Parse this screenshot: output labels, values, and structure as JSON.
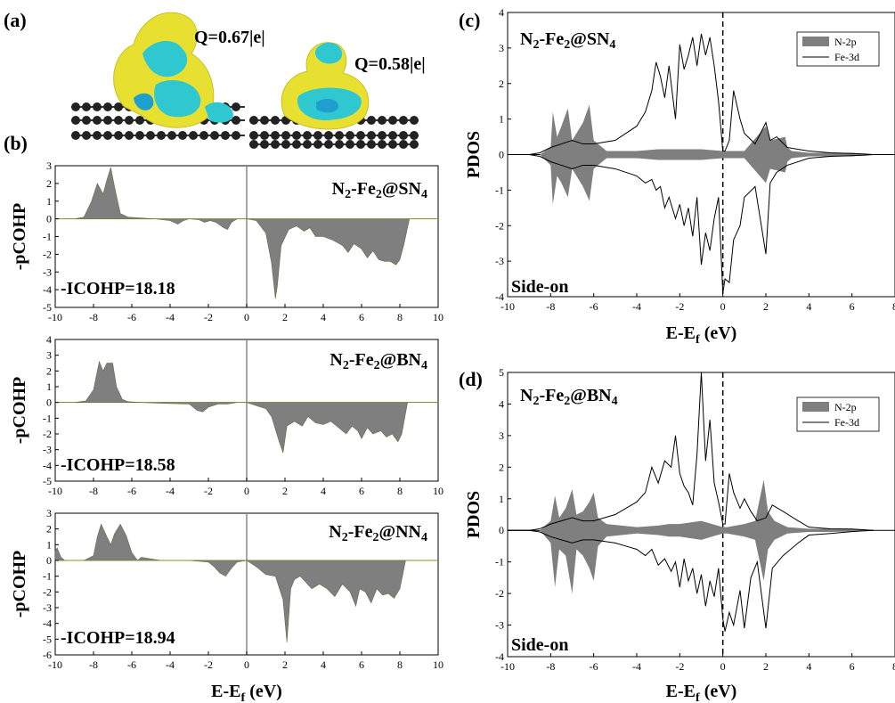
{
  "panel_labels": {
    "a": "(a)",
    "b": "(b)",
    "c": "(c)",
    "d": "(d)"
  },
  "panel_a": {
    "charge_left": "Q=0.67|e|",
    "charge_right": "Q=0.58|e|",
    "colors": {
      "isosurface_yellow": "#e8e030",
      "isosurface_cyan": "#30c8d0",
      "atoms": "#202020"
    }
  },
  "colors": {
    "fill": "#7f7f7f",
    "line": "#000000",
    "zero_line": "#b8b000"
  },
  "chart_data": [
    {
      "id": "cohp-sn4",
      "type": "area",
      "title_main": "N",
      "title_parts": [
        "N",
        "2",
        "-Fe",
        "2",
        "@SN",
        "4"
      ],
      "annotation": "-ICOHP=18.18",
      "ylabel": "-pCOHP",
      "xlabel": "",
      "xlim": [
        -10,
        10
      ],
      "ylim": [
        -5,
        3
      ],
      "yticks": [
        "3",
        "2",
        "1",
        "0",
        "-1",
        "-2",
        "-3",
        "-4",
        "-5"
      ],
      "xticks": [
        "-10",
        "-8",
        "-6",
        "-4",
        "-2",
        "0",
        "2",
        "4",
        "6",
        "8",
        "10"
      ],
      "series": [
        {
          "x": [
            -10,
            -9,
            -8.5,
            -8.1,
            -7.8,
            -7.5,
            -7.3,
            -7.1,
            -6.9,
            -6.6,
            -6.2,
            -5.5,
            -4.8,
            -4,
            -3.6,
            -3.3,
            -3,
            -2.5,
            -2.2,
            -1.9,
            -1.6,
            -1.2,
            -1,
            -0.8,
            -0.5,
            0,
            0.5,
            1,
            1.3,
            1.5,
            1.6,
            1.8,
            2.2,
            2.6,
            3,
            3.3,
            3.6,
            4,
            4.5,
            5,
            5.3,
            5.6,
            6,
            6.3,
            6.6,
            6.9,
            7.2,
            7.5,
            7.8,
            8,
            8.2,
            8.5,
            10
          ],
          "y": [
            0,
            0,
            0.1,
            1.0,
            2.0,
            1.4,
            2.2,
            2.9,
            1.8,
            0.3,
            0.1,
            0.05,
            0,
            -0.1,
            -0.3,
            -0.1,
            0,
            -0.05,
            -0.2,
            -0.1,
            -0.2,
            -0.5,
            -0.6,
            -0.2,
            0,
            0,
            -0.1,
            -0.8,
            -2.5,
            -4.5,
            -3.8,
            -1.5,
            -0.6,
            -0.4,
            -0.7,
            -0.5,
            -1.0,
            -1.0,
            -1.2,
            -1.5,
            -1.9,
            -1.4,
            -1.7,
            -2.2,
            -1.8,
            -2.3,
            -2.4,
            -2.4,
            -2.6,
            -2.3,
            -1.5,
            0,
            0
          ]
        }
      ]
    },
    {
      "id": "cohp-bn4",
      "type": "area",
      "title_parts": [
        "N",
        "2",
        "-Fe",
        "2",
        "@BN",
        "4"
      ],
      "annotation": "-ICOHP=18.58",
      "ylabel": "-pCOHP",
      "xlabel": "",
      "xlim": [
        -10,
        10
      ],
      "ylim": [
        -5,
        4
      ],
      "yticks": [
        "4",
        "3",
        "2",
        "1",
        "0",
        "-1",
        "-2",
        "-3",
        "-4",
        "-5"
      ],
      "xticks": [
        "-10",
        "-8",
        "-6",
        "-4",
        "-2",
        "0",
        "2",
        "4",
        "6",
        "8",
        "10"
      ],
      "series": [
        {
          "x": [
            -10,
            -9,
            -8.4,
            -8.0,
            -7.7,
            -7.5,
            -7.3,
            -7.0,
            -6.8,
            -6.5,
            -6.2,
            -5.5,
            -4.5,
            -3,
            -2.6,
            -2.3,
            -2,
            -1.5,
            -1,
            -0.5,
            0,
            0.5,
            1.0,
            1.3,
            1.7,
            1.9,
            2.1,
            2.5,
            2.9,
            3.2,
            3.6,
            4.0,
            4.4,
            4.8,
            5.2,
            5.5,
            5.8,
            6.0,
            6.3,
            6.6,
            7.0,
            7.3,
            7.6,
            7.9,
            8.1,
            8.4,
            10
          ],
          "y": [
            0,
            0,
            0.1,
            0.8,
            2.6,
            2.0,
            2.5,
            2.5,
            1.0,
            0.2,
            0.05,
            0,
            -0.05,
            -0.1,
            -0.5,
            -0.6,
            -0.3,
            -0.1,
            -0.1,
            0,
            0,
            -0.2,
            -0.4,
            -0.9,
            -2.5,
            -3.2,
            -1.5,
            -1.2,
            -1.5,
            -0.9,
            -1.3,
            -1.4,
            -1.2,
            -1.6,
            -2.0,
            -1.5,
            -1.8,
            -2.3,
            -1.6,
            -2.0,
            -1.8,
            -2.2,
            -2.0,
            -2.5,
            -2.0,
            0,
            0
          ]
        }
      ]
    },
    {
      "id": "cohp-nn4",
      "type": "area",
      "title_parts": [
        "N",
        "2",
        "-Fe",
        "2",
        "@NN",
        "4"
      ],
      "annotation": "-ICOHP=18.94",
      "ylabel": "-pCOHP",
      "xlabel": "E-E_f (eV)",
      "xlim": [
        -10,
        10
      ],
      "ylim": [
        -6,
        3
      ],
      "yticks": [
        "3",
        "2",
        "1",
        "0",
        "-1",
        "-2",
        "-3",
        "-4",
        "-5",
        "-6"
      ],
      "xticks": [
        "-10",
        "-8",
        "-6",
        "-4",
        "-2",
        "0",
        "2",
        "4",
        "6",
        "8",
        "10"
      ],
      "series": [
        {
          "x": [
            -10,
            -9.9,
            -9.7,
            -9.5,
            -8.5,
            -8,
            -7.8,
            -7.6,
            -7.3,
            -7.1,
            -6.9,
            -6.6,
            -6.3,
            -6.0,
            -5.7,
            -5.5,
            -4.5,
            -3,
            -2,
            -1.7,
            -1.4,
            -1.1,
            -0.8,
            -0.5,
            0,
            0.5,
            1.0,
            1.5,
            1.9,
            2.1,
            2.3,
            2.5,
            2.8,
            3.1,
            3.4,
            3.8,
            4.2,
            4.6,
            5.0,
            5.4,
            5.7,
            5.9,
            6.2,
            6.5,
            6.8,
            7.1,
            7.4,
            7.7,
            8.0,
            8.3,
            10
          ],
          "y": [
            0.6,
            0.8,
            0.2,
            0,
            0,
            0.3,
            1.5,
            2.3,
            1.5,
            1.0,
            1.7,
            2.3,
            1.6,
            0.5,
            0,
            0.2,
            0,
            0,
            -0.1,
            -0.4,
            -0.8,
            -1.0,
            -0.5,
            -0.1,
            0,
            -0.4,
            -0.9,
            -1.0,
            -2.5,
            -5.2,
            -1.8,
            -1.2,
            -1.0,
            -1.4,
            -1.8,
            -1.5,
            -1.8,
            -2.3,
            -1.5,
            -2.0,
            -2.9,
            -1.8,
            -2.0,
            -2.7,
            -1.8,
            -2.2,
            -2.1,
            -2.4,
            -1.8,
            0,
            0
          ]
        }
      ]
    },
    {
      "id": "pdos-sn4",
      "type": "area",
      "title_parts": [
        "N",
        "2",
        "-Fe",
        "2",
        "@SN",
        "4"
      ],
      "annotation": "Side-on",
      "ylabel": "PDOS",
      "xlabel": "E-E_f (eV)",
      "xlim": [
        -10,
        8
      ],
      "ylim": [
        -4,
        4
      ],
      "yticks": [
        "4",
        "3",
        "2",
        "1",
        "0",
        "-1",
        "-2",
        "-3",
        "-4"
      ],
      "xticks": [
        "-10",
        "-8",
        "-6",
        "-4",
        "-2",
        "0",
        "2",
        "4",
        "6",
        "8"
      ],
      "legend": [
        "N-2p",
        "Fe-3d"
      ],
      "legend_loc": "top-right",
      "fermi_line_x": 0,
      "series": [
        {
          "name": "N-2p",
          "kind": "fill",
          "x": [
            -10,
            -8.5,
            -8.0,
            -7.9,
            -7.7,
            -7.5,
            -7.2,
            -7.0,
            -6.8,
            -6.5,
            -6.2,
            -6.0,
            -5.8,
            -5.4,
            -4,
            -3,
            -2,
            -1,
            0,
            0.2,
            1,
            2.0,
            2.2,
            2.9,
            3.0,
            3.2,
            4,
            5,
            6,
            6.5,
            7
          ],
          "y_up": [
            0,
            0,
            0.2,
            1.2,
            0.5,
            0.8,
            1.3,
            0.4,
            0.6,
            0.9,
            1.4,
            0.4,
            0.3,
            0.1,
            0.1,
            0.15,
            0.15,
            0.15,
            0.1,
            0.1,
            0.1,
            0.8,
            0.4,
            0.5,
            0.2,
            0.1,
            0.05,
            0.05,
            0.05,
            0.02,
            0
          ],
          "y_down": [
            0,
            0,
            -0.3,
            -1.4,
            -0.6,
            -0.8,
            -1.2,
            -0.4,
            -0.6,
            -0.9,
            -1.3,
            -0.4,
            -0.3,
            -0.1,
            -0.1,
            -0.15,
            -0.15,
            -0.15,
            -0.1,
            -0.1,
            -0.1,
            -0.8,
            -0.4,
            -0.5,
            -0.2,
            -0.1,
            -0.05,
            -0.05,
            -0.05,
            -0.02,
            0
          ]
        },
        {
          "name": "Fe-3d",
          "kind": "line",
          "x": [
            -10,
            -9,
            -8.5,
            -8,
            -7.5,
            -7,
            -6.5,
            -6,
            -5,
            -4.5,
            -4,
            -3.6,
            -3.3,
            -3.1,
            -2.9,
            -2.7,
            -2.5,
            -2.2,
            -2.0,
            -1.8,
            -1.6,
            -1.4,
            -1.2,
            -1.0,
            -0.8,
            -0.6,
            -0.4,
            -0.2,
            0,
            0.1,
            0.3,
            0.5,
            0.8,
            1.0,
            1.5,
            2.0,
            2.2,
            2.5,
            3.0,
            4.0,
            5,
            6,
            6.5,
            7
          ],
          "y_up": [
            0,
            0,
            0.05,
            0.2,
            0.3,
            0.4,
            0.3,
            0.3,
            0.4,
            0.6,
            0.8,
            1.2,
            1.8,
            2.6,
            2.2,
            1.6,
            2.5,
            1.0,
            3.1,
            2.4,
            2.8,
            3.3,
            2.5,
            3.4,
            2.8,
            3.3,
            2.5,
            1.5,
            0.1,
            0.1,
            0.4,
            1.8,
            1.0,
            0.6,
            0.3,
            0.9,
            0.4,
            0.5,
            0.2,
            0.1,
            0.05,
            0.03,
            0.02,
            0
          ],
          "y_down": [
            0,
            0,
            -0.05,
            -0.2,
            -0.3,
            -0.4,
            -0.3,
            -0.3,
            -0.4,
            -0.5,
            -0.6,
            -0.8,
            -0.7,
            -1.0,
            -0.9,
            -1.5,
            -1.2,
            -1.8,
            -1.4,
            -2.0,
            -1.5,
            -2.3,
            -1.2,
            -3.1,
            -2.2,
            -2.7,
            -1.8,
            -1.2,
            -3.9,
            -3.5,
            -3.6,
            -2.4,
            -2.0,
            -1.2,
            -0.9,
            -2.8,
            -0.8,
            -0.5,
            -0.3,
            -0.1,
            -0.05,
            -0.03,
            -0.02,
            0
          ]
        }
      ]
    },
    {
      "id": "pdos-bn4",
      "type": "area",
      "title_parts": [
        "N",
        "2",
        "-Fe",
        "2",
        "@BN",
        "4"
      ],
      "annotation": "Side-on",
      "ylabel": "PDOS",
      "xlabel": "E-E_f (eV)",
      "xlim": [
        -10,
        8
      ],
      "ylim": [
        -4,
        5
      ],
      "yticks": [
        "5",
        "4",
        "3",
        "2",
        "1",
        "0",
        "-1",
        "-2",
        "-3",
        "-4"
      ],
      "xticks": [
        "-10",
        "-8",
        "-6",
        "-4",
        "-2",
        "0",
        "2",
        "4",
        "6",
        "8"
      ],
      "legend": [
        "N-2p",
        "Fe-3d"
      ],
      "legend_loc": "top-right",
      "fermi_line_x": 0,
      "series": [
        {
          "name": "N-2p",
          "kind": "fill",
          "x": [
            -10,
            -8.5,
            -8.0,
            -7.8,
            -7.6,
            -7.3,
            -7.0,
            -6.8,
            -6.5,
            -6.2,
            -6.0,
            -5.8,
            -5.4,
            -4,
            -3,
            -2.5,
            -2,
            -1.5,
            -1,
            -0.5,
            0,
            0.2,
            1,
            1.5,
            1.9,
            2.1,
            2.4,
            3.0,
            4,
            5,
            6,
            6.5,
            7
          ],
          "y_up": [
            0,
            0,
            0.3,
            1.1,
            0.4,
            0.7,
            1.3,
            0.5,
            0.6,
            0.9,
            1.2,
            0.4,
            0.2,
            0.1,
            0.15,
            0.2,
            0.2,
            0.25,
            0.3,
            0.2,
            0.1,
            0.1,
            0.2,
            0.3,
            1.6,
            0.6,
            0.3,
            0.1,
            0.05,
            0.05,
            0.04,
            0.02,
            0
          ],
          "y_down": [
            0,
            0,
            -0.4,
            -1.8,
            -0.6,
            -0.8,
            -2.0,
            -0.6,
            -0.8,
            -1.2,
            -1.6,
            -0.5,
            -0.2,
            -0.1,
            -0.15,
            -0.2,
            -0.2,
            -0.25,
            -0.3,
            -0.2,
            -0.1,
            -0.1,
            -0.2,
            -0.3,
            -1.6,
            -0.6,
            -0.3,
            -0.1,
            -0.05,
            -0.05,
            -0.04,
            -0.02,
            0
          ]
        },
        {
          "name": "Fe-3d",
          "kind": "line",
          "x": [
            -10,
            -9,
            -8.5,
            -8,
            -7.5,
            -7,
            -6.5,
            -6,
            -5,
            -4.5,
            -4,
            -3.6,
            -3.3,
            -3.0,
            -2.7,
            -2.4,
            -2.2,
            -2.0,
            -1.8,
            -1.6,
            -1.4,
            -1.2,
            -1.0,
            -0.8,
            -0.6,
            -0.4,
            -0.2,
            0,
            0.1,
            0.3,
            0.5,
            0.8,
            1.0,
            1.3,
            1.6,
            2.0,
            2.3,
            2.8,
            3.5,
            4.0,
            5,
            6,
            6.5,
            7
          ],
          "y_up": [
            0,
            0,
            0.05,
            0.2,
            0.3,
            0.4,
            0.3,
            0.3,
            0.5,
            0.7,
            0.9,
            1.2,
            2.0,
            1.5,
            2.2,
            2.0,
            3.0,
            1.8,
            1.4,
            1.2,
            0.8,
            2.4,
            5.0,
            2.2,
            3.5,
            1.5,
            0.9,
            0.2,
            0.2,
            1.8,
            1.2,
            0.7,
            1.0,
            0.6,
            0.3,
            0.4,
            0.8,
            0.6,
            0.3,
            0.1,
            0.05,
            0.04,
            0.02,
            0
          ],
          "y_down": [
            0,
            0,
            -0.05,
            -0.2,
            -0.3,
            -0.4,
            -0.3,
            -0.3,
            -0.4,
            -0.5,
            -0.6,
            -0.8,
            -0.6,
            -1.1,
            -0.9,
            -1.3,
            -1.0,
            -1.8,
            -0.9,
            -1.6,
            -1.2,
            -2.0,
            -1.4,
            -2.4,
            -1.6,
            -2.1,
            -1.2,
            -2.8,
            -3.2,
            -2.6,
            -3.0,
            -1.9,
            -3.1,
            -1.5,
            -1.0,
            -3.1,
            -1.2,
            -0.8,
            -0.4,
            -0.15,
            -0.1,
            -0.04,
            -0.02,
            0
          ]
        }
      ]
    }
  ]
}
